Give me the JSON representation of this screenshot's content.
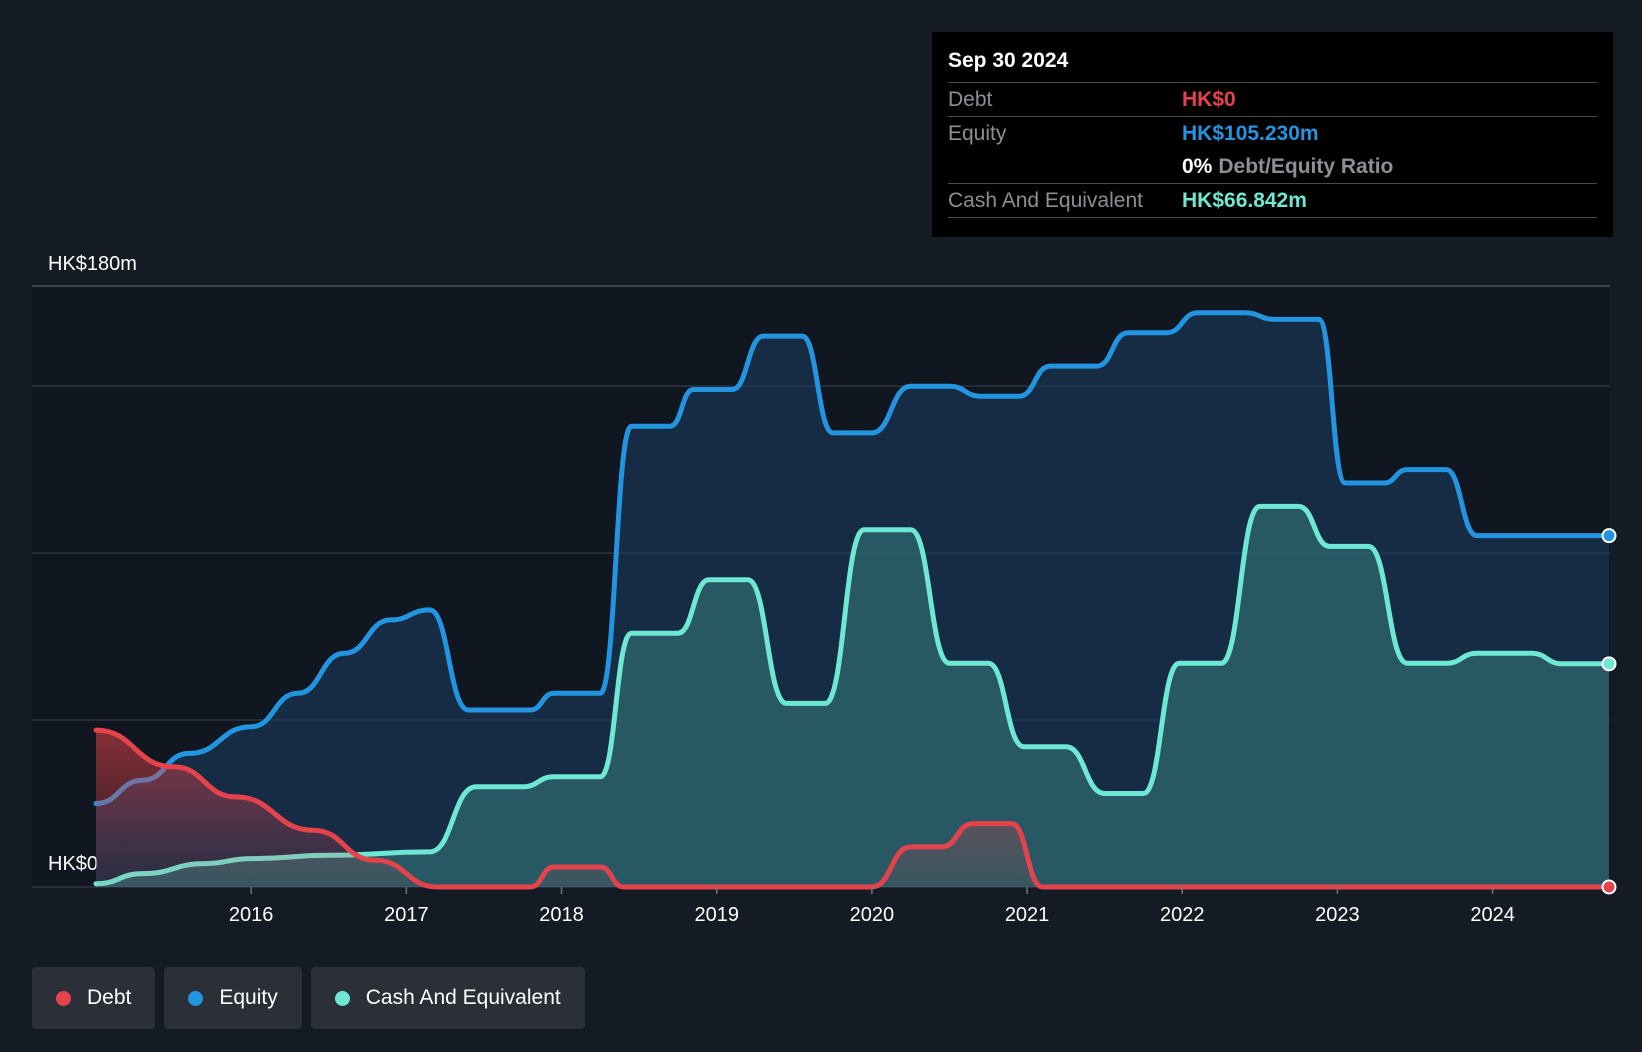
{
  "tooltip": {
    "date": "Sep 30 2024",
    "debt_label": "Debt",
    "debt_value": "HK$0",
    "equity_label": "Equity",
    "equity_value": "HK$105.230m",
    "ratio_pct": "0%",
    "ratio_label": "Debt/Equity Ratio",
    "cash_label": "Cash And Equivalent",
    "cash_value": "HK$66.842m"
  },
  "legend": {
    "debt": "Debt",
    "equity": "Equity",
    "cash": "Cash And Equivalent"
  },
  "colors": {
    "debt": "#e5434b",
    "equity": "#2394df",
    "cash": "#6ee7d3",
    "background": "#151b24",
    "plot_background": "#111720"
  },
  "chart_data": {
    "type": "area",
    "y_top_label": "HK$180m",
    "y_bottom_label": "HK$0",
    "ylim": [
      0,
      180
    ],
    "xlim": [
      2015.0,
      2024.75
    ],
    "grid": true,
    "x_ticks": [
      "2016",
      "2017",
      "2018",
      "2019",
      "2020",
      "2021",
      "2022",
      "2023",
      "2024"
    ],
    "series": [
      {
        "name": "Equity",
        "points": [
          [
            2015.0,
            25
          ],
          [
            2015.3,
            32
          ],
          [
            2015.6,
            40
          ],
          [
            2016.0,
            48
          ],
          [
            2016.3,
            58
          ],
          [
            2016.6,
            70
          ],
          [
            2016.9,
            80
          ],
          [
            2017.15,
            83
          ],
          [
            2017.4,
            53
          ],
          [
            2017.8,
            53
          ],
          [
            2017.95,
            58
          ],
          [
            2018.25,
            58
          ],
          [
            2018.45,
            138
          ],
          [
            2018.7,
            138
          ],
          [
            2018.85,
            149
          ],
          [
            2019.1,
            149
          ],
          [
            2019.3,
            165
          ],
          [
            2019.55,
            165
          ],
          [
            2019.75,
            136
          ],
          [
            2020.0,
            136
          ],
          [
            2020.25,
            150
          ],
          [
            2020.5,
            150
          ],
          [
            2020.7,
            147
          ],
          [
            2020.95,
            147
          ],
          [
            2021.15,
            156
          ],
          [
            2021.45,
            156
          ],
          [
            2021.65,
            166
          ],
          [
            2021.9,
            166
          ],
          [
            2022.1,
            172
          ],
          [
            2022.4,
            172
          ],
          [
            2022.6,
            170
          ],
          [
            2022.88,
            170
          ],
          [
            2023.05,
            121
          ],
          [
            2023.3,
            121
          ],
          [
            2023.45,
            125
          ],
          [
            2023.7,
            125
          ],
          [
            2023.9,
            105.23
          ],
          [
            2024.75,
            105.23
          ]
        ]
      },
      {
        "name": "Cash And Equivalent",
        "points": [
          [
            2015.0,
            1
          ],
          [
            2015.3,
            4
          ],
          [
            2015.7,
            7
          ],
          [
            2016.0,
            8.5
          ],
          [
            2016.5,
            9.5
          ],
          [
            2017.15,
            10.5
          ],
          [
            2017.45,
            30
          ],
          [
            2017.75,
            30
          ],
          [
            2017.95,
            33
          ],
          [
            2018.25,
            33
          ],
          [
            2018.45,
            76
          ],
          [
            2018.75,
            76
          ],
          [
            2018.95,
            92
          ],
          [
            2019.2,
            92
          ],
          [
            2019.45,
            55
          ],
          [
            2019.7,
            55
          ],
          [
            2019.95,
            107
          ],
          [
            2020.25,
            107
          ],
          [
            2020.5,
            67
          ],
          [
            2020.75,
            67
          ],
          [
            2020.98,
            42
          ],
          [
            2021.25,
            42
          ],
          [
            2021.5,
            28
          ],
          [
            2021.75,
            28
          ],
          [
            2021.98,
            67
          ],
          [
            2022.25,
            67
          ],
          [
            2022.5,
            114
          ],
          [
            2022.75,
            114
          ],
          [
            2022.95,
            102
          ],
          [
            2023.2,
            102
          ],
          [
            2023.45,
            67
          ],
          [
            2023.7,
            67
          ],
          [
            2023.9,
            70
          ],
          [
            2024.25,
            70
          ],
          [
            2024.45,
            66.842
          ],
          [
            2024.75,
            66.842
          ]
        ]
      },
      {
        "name": "Debt",
        "points": [
          [
            2015.0,
            47
          ],
          [
            2015.5,
            36
          ],
          [
            2015.9,
            27
          ],
          [
            2016.4,
            17
          ],
          [
            2016.8,
            8
          ],
          [
            2017.2,
            0
          ],
          [
            2017.8,
            0
          ],
          [
            2017.95,
            6
          ],
          [
            2018.25,
            6
          ],
          [
            2018.4,
            0
          ],
          [
            2020.0,
            0
          ],
          [
            2020.25,
            12
          ],
          [
            2020.45,
            12
          ],
          [
            2020.65,
            19
          ],
          [
            2020.9,
            19
          ],
          [
            2021.1,
            0
          ],
          [
            2024.75,
            0
          ]
        ]
      }
    ]
  }
}
